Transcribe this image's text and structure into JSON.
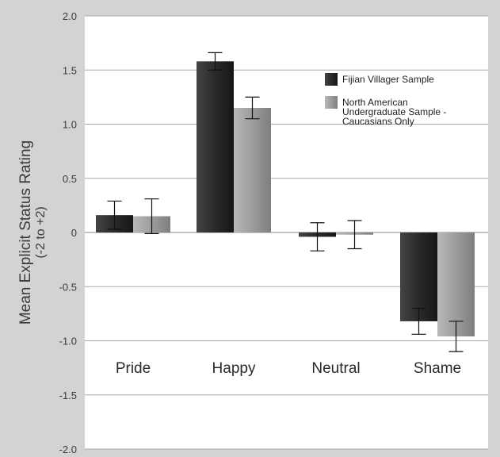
{
  "chart_data": {
    "type": "bar",
    "title": "",
    "xlabel": "",
    "ylabel": "Mean Explicit Status Rating",
    "ylabel_sub": "(-2 to +2)",
    "ylim": [
      -2.0,
      2.0
    ],
    "yticks": [
      2.0,
      1.5,
      1.0,
      0.5,
      0,
      -0.5,
      -1.0,
      -1.5,
      -2.0
    ],
    "ytick_labels": [
      "2.0",
      "1.5",
      "1.0",
      "0.5",
      "0",
      "-0.5",
      "-1.0",
      "-1.5",
      "-2.0"
    ],
    "grid": true,
    "legend_position": "top-right",
    "categories": [
      "Pride",
      "Happy",
      "Neutral",
      "Shame"
    ],
    "series": [
      {
        "name": "Fijian Villager Sample",
        "color": "#2b2b2b",
        "values": [
          0.16,
          1.58,
          -0.04,
          -0.82
        ],
        "error": [
          0.13,
          0.08,
          0.13,
          0.12
        ]
      },
      {
        "name": "North American Undergraduate Sample - Caucasians Only",
        "legend_lines": [
          "North American",
          "Undergraduate Sample -",
          "Caucasians Only"
        ],
        "color": "#9a9a9a",
        "values": [
          0.15,
          1.15,
          -0.02,
          -0.96
        ],
        "error": [
          0.16,
          0.1,
          0.13,
          0.14
        ]
      }
    ]
  }
}
